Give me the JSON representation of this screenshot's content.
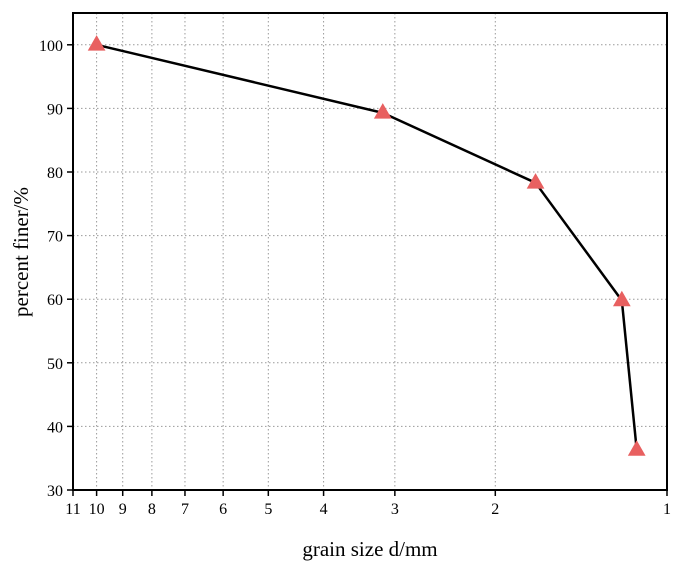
{
  "chart_data": {
    "type": "line",
    "title": "",
    "xlabel": "grain size d/mm",
    "ylabel": "percent finer/%",
    "x_scale": "log",
    "x_reversed": true,
    "xlim": [
      11,
      1
    ],
    "ylim": [
      30,
      105
    ],
    "x_ticks": [
      11,
      10,
      9,
      8,
      7,
      6,
      5,
      4,
      3,
      2,
      1
    ],
    "y_ticks": [
      30,
      40,
      50,
      60,
      70,
      80,
      90,
      100
    ],
    "grid": true,
    "legend": "none",
    "series": [
      {
        "x": [
          10,
          3.15,
          1.7,
          1.2,
          1.13
        ],
        "y": [
          100,
          89.3,
          78.3,
          59.8,
          36.3
        ]
      }
    ],
    "colors": {
      "line": "#000000",
      "marker": "#e86060",
      "grid": "#9a9a9a"
    },
    "marker_shape": "triangle"
  }
}
